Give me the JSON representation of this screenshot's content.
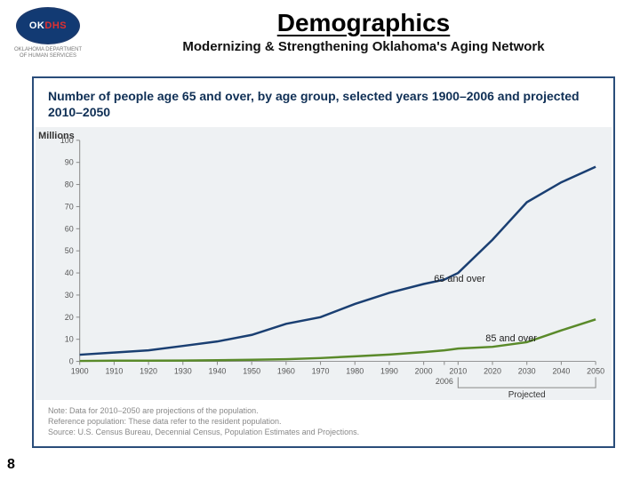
{
  "header": {
    "logo": {
      "text_ok": "OK",
      "text_dhs": "DHS",
      "state_label": "OKLAHOMA",
      "caption": "OKLAHOMA DEPARTMENT OF HUMAN SERVICES",
      "fill": "#123a73",
      "dhs_color": "#e03030"
    },
    "title": "Demographics",
    "subtitle": "Modernizing & Strengthening Oklahoma's Aging Network"
  },
  "chart": {
    "type": "line",
    "title": "Number of people age 65 and over, by age group, selected years 1900–2006 and projected 2010–2050",
    "y_axis": {
      "label": "Millions",
      "min": 0,
      "max": 100,
      "tick_step": 10,
      "label_fontsize": 11
    },
    "x_axis": {
      "ticks": [
        1900,
        1910,
        1920,
        1930,
        1940,
        1950,
        1960,
        1970,
        1980,
        1990,
        2000,
        2006,
        2010,
        2020,
        2030,
        2040,
        2050
      ],
      "min": 1900,
      "max": 2050,
      "label_fontsize": 9
    },
    "background_color": "#eef1f3",
    "axis_color": "#888888",
    "frame_border": "#2a4d7a",
    "series": [
      {
        "name": "65 and over",
        "label": "65 and over",
        "color": "#1a3f72",
        "line_width": 2.5,
        "label_at": {
          "year": 2003,
          "value": 36
        },
        "data": [
          {
            "year": 1900,
            "value": 3
          },
          {
            "year": 1910,
            "value": 4
          },
          {
            "year": 1920,
            "value": 5
          },
          {
            "year": 1930,
            "value": 7
          },
          {
            "year": 1940,
            "value": 9
          },
          {
            "year": 1950,
            "value": 12
          },
          {
            "year": 1960,
            "value": 17
          },
          {
            "year": 1970,
            "value": 20
          },
          {
            "year": 1980,
            "value": 26
          },
          {
            "year": 1990,
            "value": 31
          },
          {
            "year": 2000,
            "value": 35
          },
          {
            "year": 2006,
            "value": 37
          },
          {
            "year": 2010,
            "value": 40
          },
          {
            "year": 2020,
            "value": 55
          },
          {
            "year": 2030,
            "value": 72
          },
          {
            "year": 2040,
            "value": 81
          },
          {
            "year": 2050,
            "value": 88
          }
        ]
      },
      {
        "name": "85 and over",
        "label": "85 and over",
        "color": "#5a8a2a",
        "line_width": 2.5,
        "label_at": {
          "year": 2018,
          "value": 9
        },
        "data": [
          {
            "year": 1900,
            "value": 0.2
          },
          {
            "year": 1910,
            "value": 0.3
          },
          {
            "year": 1920,
            "value": 0.3
          },
          {
            "year": 1930,
            "value": 0.4
          },
          {
            "year": 1940,
            "value": 0.5
          },
          {
            "year": 1950,
            "value": 0.7
          },
          {
            "year": 1960,
            "value": 1
          },
          {
            "year": 1970,
            "value": 1.5
          },
          {
            "year": 1980,
            "value": 2.3
          },
          {
            "year": 1990,
            "value": 3.1
          },
          {
            "year": 2000,
            "value": 4.2
          },
          {
            "year": 2006,
            "value": 5
          },
          {
            "year": 2010,
            "value": 5.8
          },
          {
            "year": 2020,
            "value": 6.6
          },
          {
            "year": 2030,
            "value": 8.7
          },
          {
            "year": 2040,
            "value": 14
          },
          {
            "year": 2050,
            "value": 19
          }
        ]
      }
    ],
    "projected": {
      "label": "Projected",
      "from_year": 2010,
      "to_year": 2050,
      "marker_year_label": "2006"
    },
    "notes": [
      "Note: Data for 2010–2050 are projections of the population.",
      "Reference population: These data refer to the resident population.",
      "Source: U.S. Census Bureau, Decennial Census, Population Estimates and Projections."
    ]
  },
  "page_number": "8"
}
